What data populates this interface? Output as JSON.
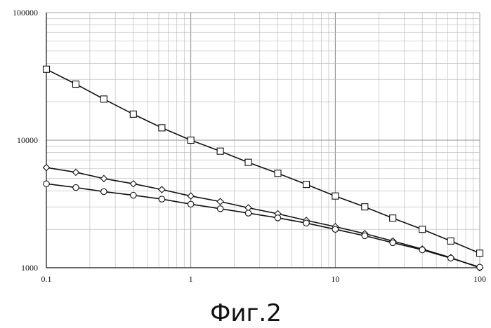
{
  "caption": "Фиг.2",
  "chart_data": {
    "type": "line",
    "title": "",
    "xlabel": "",
    "ylabel": "",
    "x_scale": "log",
    "y_scale": "log",
    "xlim": [
      0.1,
      100
    ],
    "ylim": [
      1000,
      100000
    ],
    "grid": true,
    "x_tick_labels": [
      {
        "value": 0.1,
        "label": "0.1"
      },
      {
        "value": 1,
        "label": "1"
      },
      {
        "value": 10,
        "label": "10"
      },
      {
        "value": 100,
        "label": "100"
      }
    ],
    "y_tick_labels": [
      {
        "value": 1000,
        "label": "1000"
      },
      {
        "value": 10000,
        "label": "10000"
      },
      {
        "value": 100000,
        "label": "100000"
      }
    ],
    "series": [
      {
        "marker": "square",
        "x": [
          0.1,
          0.16,
          0.25,
          0.4,
          0.63,
          1,
          1.6,
          2.5,
          4,
          6.3,
          10,
          16,
          25,
          40,
          63,
          100
        ],
        "y": [
          36000,
          27500,
          21000,
          16000,
          12500,
          10000,
          8200,
          6700,
          5500,
          4500,
          3650,
          3000,
          2450,
          2000,
          1620,
          1300
        ]
      },
      {
        "marker": "diamond",
        "x": [
          0.1,
          0.16,
          0.25,
          0.4,
          0.63,
          1,
          1.6,
          2.5,
          4,
          6.3,
          10,
          16,
          25,
          40,
          63,
          100
        ],
        "y": [
          6100,
          5600,
          5000,
          4550,
          4100,
          3650,
          3300,
          2950,
          2650,
          2350,
          2100,
          1850,
          1620,
          1400,
          1200,
          1000
        ]
      },
      {
        "marker": "circle",
        "x": [
          0.1,
          0.16,
          0.25,
          0.4,
          0.63,
          1,
          1.6,
          2.5,
          4,
          6.3,
          10,
          16,
          25,
          40,
          63,
          100
        ],
        "y": [
          4550,
          4250,
          3950,
          3700,
          3450,
          3150,
          2900,
          2680,
          2460,
          2240,
          2000,
          1780,
          1570,
          1380,
          1190,
          1010
        ]
      }
    ]
  }
}
